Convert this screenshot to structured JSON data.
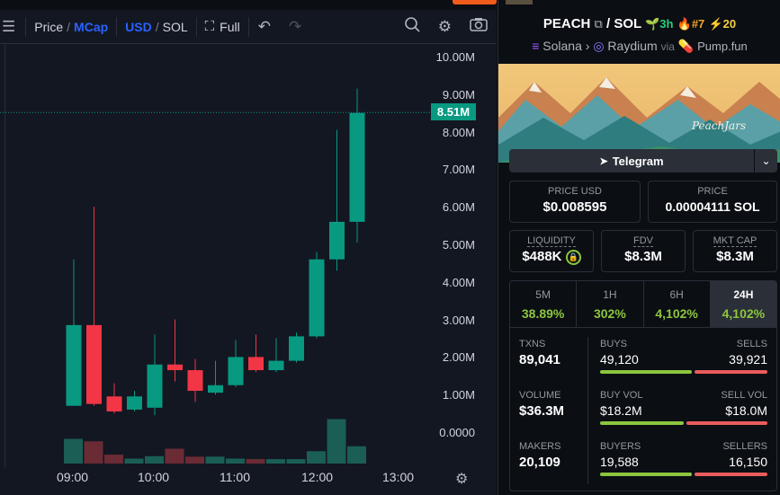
{
  "toolbar": {
    "price_label": "Price",
    "mcap_label": "MCap",
    "usd_label": "USD",
    "sol_label": "SOL",
    "full_label": "Full"
  },
  "chart_data": {
    "type": "candlestick",
    "ylabels": [
      "10.00M",
      "9.00M",
      "8.00M",
      "7.00M",
      "6.00M",
      "5.00M",
      "4.00M",
      "3.00M",
      "2.00M",
      "1.00M",
      "0.0000"
    ],
    "ylim": [
      0,
      10000000
    ],
    "last_value_label": "8.51M",
    "last_value": 8510000,
    "time_labels": [
      "09:00",
      "10:00",
      "11:00",
      "12:00",
      "13:00"
    ],
    "candles": [
      {
        "o": 0.7,
        "c": 2.85,
        "h": 4.6,
        "l": 0.7
      },
      {
        "o": 2.85,
        "c": 0.75,
        "h": 6.0,
        "l": 0.7
      },
      {
        "o": 0.95,
        "c": 0.55,
        "h": 1.3,
        "l": 0.5
      },
      {
        "o": 0.6,
        "c": 0.95,
        "h": 1.1,
        "l": 0.55
      },
      {
        "o": 0.65,
        "c": 1.8,
        "h": 2.6,
        "l": 0.45
      },
      {
        "o": 1.8,
        "c": 1.65,
        "h": 3.0,
        "l": 1.35
      },
      {
        "o": 1.65,
        "c": 1.1,
        "h": 1.95,
        "l": 0.8
      },
      {
        "o": 1.05,
        "c": 1.25,
        "h": 1.9,
        "l": 1.0
      },
      {
        "o": 1.25,
        "c": 2.0,
        "h": 2.45,
        "l": 1.2
      },
      {
        "o": 2.0,
        "c": 1.65,
        "h": 2.6,
        "l": 1.6
      },
      {
        "o": 1.65,
        "c": 1.9,
        "h": 2.5,
        "l": 1.6
      },
      {
        "o": 1.9,
        "c": 2.55,
        "h": 2.65,
        "l": 1.85
      },
      {
        "o": 2.55,
        "c": 4.6,
        "h": 4.8,
        "l": 2.5
      },
      {
        "o": 4.6,
        "c": 5.6,
        "h": 8.05,
        "l": 4.3
      },
      {
        "o": 5.6,
        "c": 8.5,
        "h": 9.15,
        "l": 5.05
      }
    ],
    "volumes": [
      {
        "v": 0.5,
        "up": true
      },
      {
        "v": 0.45,
        "up": false
      },
      {
        "v": 0.18,
        "up": false
      },
      {
        "v": 0.1,
        "up": true
      },
      {
        "v": 0.15,
        "up": true
      },
      {
        "v": 0.3,
        "up": false
      },
      {
        "v": 0.14,
        "up": false
      },
      {
        "v": 0.14,
        "up": true
      },
      {
        "v": 0.1,
        "up": true
      },
      {
        "v": 0.09,
        "up": false
      },
      {
        "v": 0.09,
        "up": true
      },
      {
        "v": 0.09,
        "up": true
      },
      {
        "v": 0.25,
        "up": true
      },
      {
        "v": 0.9,
        "up": true
      },
      {
        "v": 0.35,
        "up": true
      }
    ]
  },
  "pair": {
    "base": "PEACH",
    "quote": "SOL",
    "age": "3h",
    "rank": "#7",
    "boosts": "20"
  },
  "chain": {
    "network": "Solana",
    "dex": "Raydium",
    "via": "via",
    "launchpad": "Pump.fun"
  },
  "banner": {
    "signature": "PeachJars"
  },
  "telegram_label": "Telegram",
  "price_usd": {
    "label": "PRICE USD",
    "value": "$0.008595"
  },
  "price_sol": {
    "label": "PRICE",
    "value": "0.00004111 SOL"
  },
  "liquidity": {
    "label": "LIQUIDITY",
    "value": "$488K"
  },
  "fdv": {
    "label": "FDV",
    "value": "$8.3M"
  },
  "mcap": {
    "label": "MKT CAP",
    "value": "$8.3M"
  },
  "tabs": [
    {
      "label": "5M",
      "pct": "38.89%"
    },
    {
      "label": "1H",
      "pct": "302%"
    },
    {
      "label": "6H",
      "pct": "4,102%"
    },
    {
      "label": "24H",
      "pct": "4,102%"
    }
  ],
  "txns": {
    "label": "TXNS",
    "value": "89,041"
  },
  "volume": {
    "label": "VOLUME",
    "value": "$36.3M"
  },
  "makers": {
    "label": "MAKERS",
    "value": "20,109"
  },
  "buys": {
    "label": "BUYS",
    "value": "49,120",
    "share": 0.55
  },
  "sells": {
    "label": "SELLS",
    "value": "39,921"
  },
  "buy_vol": {
    "label": "BUY VOL",
    "value": "$18.2M",
    "share": 0.5
  },
  "sell_vol": {
    "label": "SELL VOL",
    "value": "$18.0M"
  },
  "buyers": {
    "label": "BUYERS",
    "value": "19,588",
    "share": 0.55
  },
  "sellers": {
    "label": "SELLERS",
    "value": "16,150"
  },
  "colors": {
    "up": "#089981",
    "down": "#f23645",
    "accent": "#2962ff",
    "positive": "#8cc63e",
    "negative": "#ea5c5c"
  }
}
